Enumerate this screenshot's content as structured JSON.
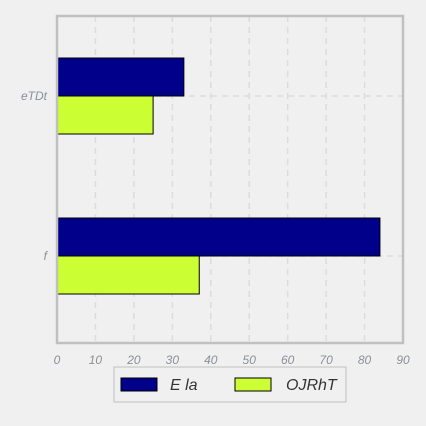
{
  "chart_data": {
    "type": "bar",
    "orientation": "horizontal",
    "categories": [
      "eTDt",
      "f"
    ],
    "series": [
      {
        "name": "E la",
        "values": [
          33,
          84
        ],
        "color": "#00008b"
      },
      {
        "name": "OJRhT",
        "values": [
          25,
          37
        ],
        "color": "#ccff33"
      }
    ],
    "x_ticks": [
      0,
      10,
      20,
      30,
      40,
      50,
      60,
      70,
      80,
      90
    ],
    "xlim": [
      0,
      90
    ],
    "grid": true,
    "legend_position": "bottom"
  },
  "colors": {
    "background": "#f0f0f0",
    "frame": "#c0c0c0",
    "grid": "#dcdcdc",
    "tick_text": "#8a9097"
  }
}
